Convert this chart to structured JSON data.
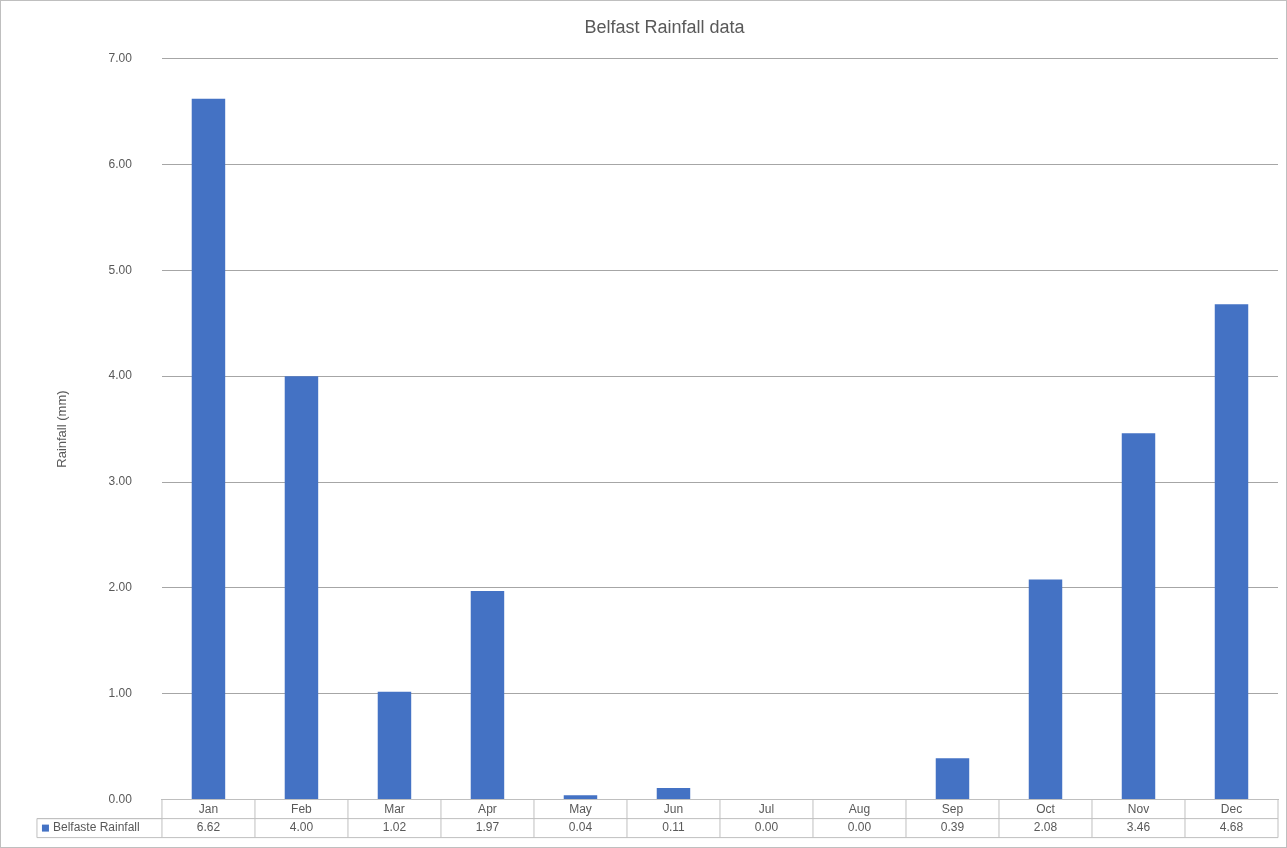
{
  "chart_data": {
    "type": "bar",
    "title": "Belfast Rainfall data",
    "ylabel": "Rainfall (mm)",
    "categories": [
      "Jan",
      "Feb",
      "Mar",
      "Apr",
      "May",
      "Jun",
      "Jul",
      "Aug",
      "Sep",
      "Oct",
      "Nov",
      "Dec"
    ],
    "series": [
      {
        "name": "Belfaste Rainfall",
        "color": "#4472c4",
        "values": [
          6.62,
          4.0,
          1.02,
          1.97,
          0.04,
          0.11,
          0.0,
          0.0,
          0.39,
          2.08,
          3.46,
          4.68
        ],
        "value_labels": [
          "6.62",
          "4.00",
          "1.02",
          "1.97",
          "0.04",
          "0.11",
          "0.00",
          "0.00",
          "0.39",
          "2.08",
          "3.46",
          "4.68"
        ]
      }
    ],
    "ylim": [
      0,
      7
    ],
    "yticks": [
      {
        "value": 0,
        "label": "0.00"
      },
      {
        "value": 1,
        "label": "1.00"
      },
      {
        "value": 2,
        "label": "2.00"
      },
      {
        "value": 3,
        "label": "3.00"
      },
      {
        "value": 4,
        "label": "4.00"
      },
      {
        "value": 5,
        "label": "5.00"
      },
      {
        "value": 6,
        "label": "6.00"
      },
      {
        "value": 7,
        "label": "7.00"
      }
    ],
    "grid": "y",
    "legend": "bottom"
  }
}
